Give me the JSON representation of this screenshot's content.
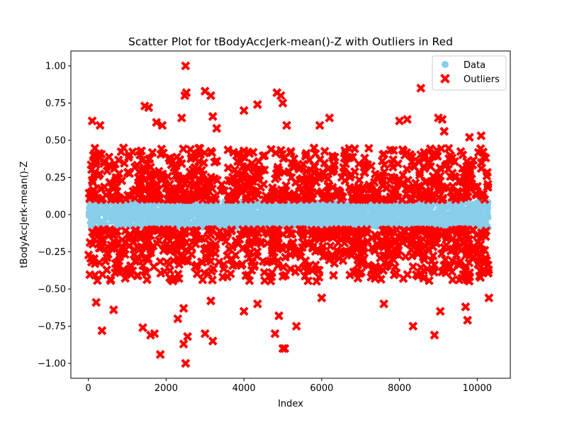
{
  "chart_data": {
    "type": "scatter",
    "title": "Scatter Plot for tBodyAccJerk-mean()-Z with Outliers in Red",
    "xlabel": "Index",
    "ylabel": "tBodyAccJerk-mean()-Z",
    "xlim": [
      -450,
      10850
    ],
    "ylim": [
      -1.1,
      1.1
    ],
    "xticks": [
      0,
      2000,
      4000,
      6000,
      8000,
      10000
    ],
    "xtick_labels": [
      "0",
      "2000",
      "4000",
      "6000",
      "8000",
      "10000"
    ],
    "yticks": [
      -1.0,
      -0.75,
      -0.5,
      -0.25,
      0.0,
      0.25,
      0.5,
      0.75,
      1.0
    ],
    "ytick_labels": [
      "−1.00",
      "−0.75",
      "−0.50",
      "−0.25",
      "0.00",
      "0.25",
      "0.50",
      "0.75",
      "1.00"
    ],
    "grid": false,
    "legend_position": "top-right",
    "series": [
      {
        "name": "Data",
        "marker": "circle",
        "color": "#87ceeb",
        "x_range": [
          0,
          10299
        ],
        "band": [
          -0.09,
          0.09
        ]
      },
      {
        "name": "Outliers",
        "marker": "x",
        "color": "#ff0000",
        "x_range": [
          0,
          10299
        ],
        "upper_band": [
          0.1,
          0.45
        ],
        "lower_band": [
          -0.45,
          -0.1
        ],
        "points": [
          [
            2500,
            1.0
          ],
          [
            8550,
            0.85
          ],
          [
            2520,
            0.82
          ],
          [
            2480,
            0.8
          ],
          [
            3000,
            0.83
          ],
          [
            3150,
            0.8
          ],
          [
            4850,
            0.82
          ],
          [
            4950,
            0.8
          ],
          [
            5000,
            0.75
          ],
          [
            4350,
            0.74
          ],
          [
            1450,
            0.73
          ],
          [
            1550,
            0.72
          ],
          [
            4000,
            0.7
          ],
          [
            3200,
            0.66
          ],
          [
            2400,
            0.65
          ],
          [
            6200,
            0.65
          ],
          [
            9000,
            0.65
          ],
          [
            9100,
            0.64
          ],
          [
            8000,
            0.63
          ],
          [
            8200,
            0.64
          ],
          [
            100,
            0.63
          ],
          [
            300,
            0.6
          ],
          [
            1750,
            0.62
          ],
          [
            1900,
            0.6
          ],
          [
            5950,
            0.6
          ],
          [
            3300,
            0.58
          ],
          [
            5100,
            0.6
          ],
          [
            9150,
            0.56
          ],
          [
            10100,
            0.53
          ],
          [
            9800,
            0.52
          ],
          [
            2450,
            -0.87
          ],
          [
            2500,
            -1.0
          ],
          [
            2550,
            -0.82
          ],
          [
            1850,
            -0.94
          ],
          [
            3200,
            -0.85
          ],
          [
            3000,
            -0.8
          ],
          [
            5000,
            -0.9
          ],
          [
            5050,
            -0.9
          ],
          [
            4800,
            -0.8
          ],
          [
            5350,
            -0.75
          ],
          [
            8350,
            -0.75
          ],
          [
            8900,
            -0.81
          ],
          [
            350,
            -0.78
          ],
          [
            1400,
            -0.76
          ],
          [
            1600,
            -0.81
          ],
          [
            1700,
            -0.8
          ],
          [
            9750,
            -0.71
          ],
          [
            9700,
            -0.62
          ],
          [
            9050,
            -0.65
          ],
          [
            4350,
            -0.6
          ],
          [
            7600,
            -0.6
          ],
          [
            650,
            -0.64
          ],
          [
            200,
            -0.59
          ],
          [
            10300,
            -0.56
          ],
          [
            2300,
            -0.7
          ],
          [
            2450,
            -0.63
          ],
          [
            4000,
            -0.65
          ],
          [
            6000,
            -0.56
          ],
          [
            4900,
            -0.68
          ],
          [
            3150,
            -0.58
          ]
        ]
      }
    ]
  }
}
